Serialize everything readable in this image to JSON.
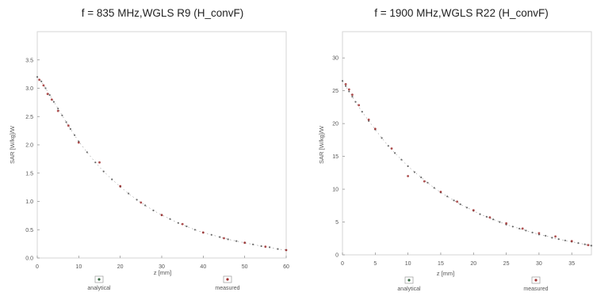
{
  "chart_data": [
    {
      "type": "scatter",
      "title": "f = 835 MHz,WGLS R9 (H_convF)",
      "xlabel": "z [mm]",
      "ylabel": "SAR [W/kg]/W",
      "xlim": [
        0,
        60
      ],
      "ylim": [
        0,
        4.0
      ],
      "xticks": [
        "0",
        "10",
        "20",
        "30",
        "40",
        "50",
        "60"
      ],
      "yticks": [
        "0.0",
        "0.5",
        "1.0",
        "1.5",
        "2.0",
        "2.5",
        "3.0",
        "3.5"
      ],
      "grid": false,
      "legend": {
        "placement": "bottom",
        "items": [
          "analytical",
          "measured"
        ]
      },
      "series": [
        {
          "name": "analytical",
          "color": "#3a6a45",
          "x": [
            0,
            1,
            2,
            3,
            4,
            5,
            6,
            7,
            8,
            9,
            10,
            12,
            14,
            16,
            18,
            20,
            22,
            24,
            26,
            28,
            30,
            32,
            34,
            36,
            38,
            40,
            42,
            44,
            46,
            48,
            50,
            52,
            54,
            56,
            58,
            60
          ],
          "y": [
            3.2,
            3.12,
            3.0,
            2.88,
            2.76,
            2.64,
            2.52,
            2.4,
            2.28,
            2.17,
            2.06,
            1.87,
            1.69,
            1.53,
            1.39,
            1.26,
            1.14,
            1.03,
            0.93,
            0.84,
            0.76,
            0.69,
            0.62,
            0.56,
            0.5,
            0.45,
            0.41,
            0.37,
            0.33,
            0.3,
            0.27,
            0.24,
            0.21,
            0.19,
            0.16,
            0.14
          ]
        },
        {
          "name": "measured",
          "color": "#a03030",
          "x": [
            0.5,
            1.5,
            2.5,
            3.5,
            5,
            7.5,
            10,
            15,
            20,
            25,
            30,
            35,
            40,
            45,
            50,
            55,
            60
          ],
          "y": [
            3.15,
            3.05,
            2.9,
            2.8,
            2.6,
            2.34,
            2.04,
            1.69,
            1.27,
            0.98,
            0.76,
            0.6,
            0.45,
            0.35,
            0.27,
            0.2,
            0.14
          ]
        }
      ]
    },
    {
      "type": "scatter",
      "title": "f = 1900 MHz,WGLS R22 (H_convF)",
      "xlabel": "z [mm]",
      "ylabel": "SAR [W/kg]/W",
      "xlim": [
        0,
        38
      ],
      "ylim": [
        0,
        34
      ],
      "xticks": [
        "0",
        "5",
        "10",
        "15",
        "20",
        "25",
        "30",
        "35"
      ],
      "yticks": [
        "0",
        "5",
        "10",
        "15",
        "20",
        "25",
        "30"
      ],
      "grid": false,
      "legend": {
        "placement": "bottom",
        "items": [
          "analytical",
          "measured"
        ]
      },
      "series": [
        {
          "name": "analytical",
          "color": "#3a6a45",
          "x": [
            0,
            0.5,
            1,
            1.5,
            2,
            3,
            4,
            5,
            6,
            7,
            8,
            9,
            10,
            11,
            12,
            13,
            14,
            15,
            16,
            17,
            18,
            19,
            20,
            21,
            22,
            23,
            24,
            25,
            26,
            27,
            28,
            29,
            30,
            31,
            32,
            33,
            34,
            35,
            36,
            37,
            38
          ],
          "y": [
            26.5,
            25.7,
            24.9,
            24.1,
            23.3,
            21.8,
            20.4,
            19.1,
            17.8,
            16.6,
            15.5,
            14.5,
            13.5,
            12.6,
            11.8,
            11.0,
            10.2,
            9.5,
            8.9,
            8.3,
            7.7,
            7.2,
            6.7,
            6.2,
            5.8,
            5.4,
            5.0,
            4.6,
            4.3,
            4.0,
            3.7,
            3.4,
            3.1,
            2.9,
            2.6,
            2.4,
            2.2,
            2.0,
            1.8,
            1.6,
            1.4
          ]
        },
        {
          "name": "measured",
          "color": "#a03030",
          "x": [
            0.5,
            1,
            1.5,
            2.5,
            4,
            5,
            7.5,
            10,
            12.5,
            15,
            17.5,
            20,
            22.5,
            25,
            27.5,
            30,
            32.5,
            35,
            37.5
          ],
          "y": [
            26.0,
            25.2,
            24.4,
            22.8,
            20.6,
            19.2,
            16.2,
            12.0,
            11.2,
            9.6,
            8.1,
            6.8,
            5.7,
            4.8,
            4.0,
            3.3,
            2.8,
            2.1,
            1.5
          ]
        }
      ]
    }
  ]
}
